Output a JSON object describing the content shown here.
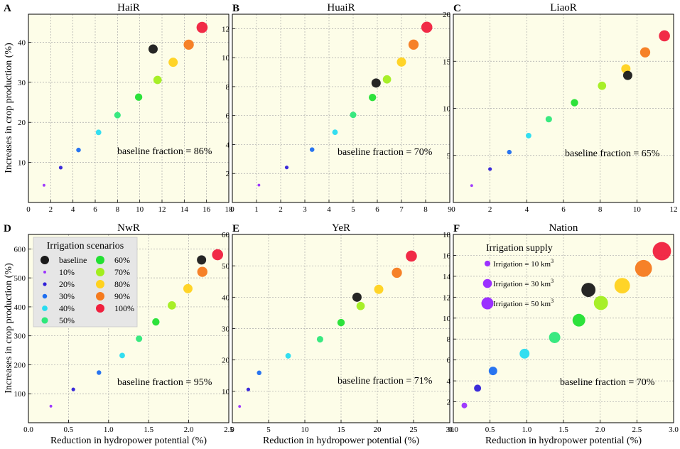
{
  "colors": {
    "plot_bg": "#fdfde8",
    "grid": "#a9a9a9",
    "scenario_colors": [
      "#1a1a1a",
      "#9b30ff",
      "#3020d8",
      "#1e6ef0",
      "#28dcf0",
      "#2ee87a",
      "#22e032",
      "#a2ee1e",
      "#ffd21e",
      "#f57a1e",
      "#f0203e"
    ]
  },
  "shared": {
    "xlabel": "Reduction in hydropower potential (%)",
    "ylabel": "Increases in crop production (%)"
  },
  "legend": {
    "title": "Irrigation scenarios",
    "entries": [
      "baseline",
      "10%",
      "20%",
      "30%",
      "40%",
      "50%",
      "60%",
      "70%",
      "80%",
      "90%",
      "100%"
    ]
  },
  "supply_legend": {
    "title": "Irrigation supply",
    "entries": [
      {
        "label": "Irrigation = 10 km",
        "sup": "3",
        "amount": 10
      },
      {
        "label": "Irrigation = 30 km",
        "sup": "3",
        "amount": 30
      },
      {
        "label": "Irrigation = 50 km",
        "sup": "3",
        "amount": 50
      }
    ]
  },
  "chart_data": [
    {
      "type": "scatter",
      "letter": "A",
      "title": "HaiR",
      "xlim": [
        0,
        18
      ],
      "ylim": [
        0,
        47
      ],
      "xticks": [
        "0",
        "2",
        "4",
        "6",
        "8",
        "10",
        "12",
        "14",
        "16",
        "18"
      ],
      "yticks": [
        "10",
        "20",
        "30",
        "40"
      ],
      "annotation": "baseline fraction = 86%",
      "points": [
        {
          "scenario": "baseline",
          "x": 11.2,
          "y": 38.3
        },
        {
          "scenario": "10%",
          "x": 1.4,
          "y": 4.3
        },
        {
          "scenario": "20%",
          "x": 2.9,
          "y": 8.7
        },
        {
          "scenario": "30%",
          "x": 4.5,
          "y": 13.1
        },
        {
          "scenario": "40%",
          "x": 6.3,
          "y": 17.5
        },
        {
          "scenario": "50%",
          "x": 8.0,
          "y": 21.8
        },
        {
          "scenario": "60%",
          "x": 9.9,
          "y": 26.3
        },
        {
          "scenario": "70%",
          "x": 11.6,
          "y": 30.6
        },
        {
          "scenario": "80%",
          "x": 13.0,
          "y": 35.0
        },
        {
          "scenario": "90%",
          "x": 14.4,
          "y": 39.4
        },
        {
          "scenario": "100%",
          "x": 15.6,
          "y": 43.7
        }
      ]
    },
    {
      "type": "scatter",
      "letter": "B",
      "title": "HuaiR",
      "xlim": [
        0,
        9
      ],
      "ylim": [
        0,
        13
      ],
      "xticks": [
        "0",
        "1",
        "2",
        "3",
        "4",
        "5",
        "6",
        "7",
        "8",
        "9"
      ],
      "yticks": [
        "2",
        "4",
        "6",
        "8",
        "10",
        "12"
      ],
      "annotation": "baseline fraction = 70%",
      "points": [
        {
          "scenario": "baseline",
          "x": 5.95,
          "y": 8.25
        },
        {
          "scenario": "10%",
          "x": 1.1,
          "y": 1.2
        },
        {
          "scenario": "20%",
          "x": 2.25,
          "y": 2.42
        },
        {
          "scenario": "30%",
          "x": 3.3,
          "y": 3.65
        },
        {
          "scenario": "40%",
          "x": 4.25,
          "y": 4.85
        },
        {
          "scenario": "50%",
          "x": 5.0,
          "y": 6.05
        },
        {
          "scenario": "60%",
          "x": 5.8,
          "y": 7.25
        },
        {
          "scenario": "70%",
          "x": 6.4,
          "y": 8.5
        },
        {
          "scenario": "80%",
          "x": 7.0,
          "y": 9.7
        },
        {
          "scenario": "90%",
          "x": 7.5,
          "y": 10.9
        },
        {
          "scenario": "100%",
          "x": 8.05,
          "y": 12.1
        }
      ]
    },
    {
      "type": "scatter",
      "letter": "C",
      "title": "LiaoR",
      "xlim": [
        0,
        12
      ],
      "ylim": [
        0,
        20
      ],
      "xticks": [
        "0",
        "2",
        "4",
        "6",
        "8",
        "10",
        "12"
      ],
      "yticks": [
        "5",
        "10",
        "15",
        "20"
      ],
      "annotation": "baseline fraction = 65%",
      "points": [
        {
          "scenario": "baseline",
          "x": 9.5,
          "y": 13.5
        },
        {
          "scenario": "10%",
          "x": 1.0,
          "y": 1.8
        },
        {
          "scenario": "20%",
          "x": 2.0,
          "y": 3.55
        },
        {
          "scenario": "30%",
          "x": 3.05,
          "y": 5.35
        },
        {
          "scenario": "40%",
          "x": 4.1,
          "y": 7.1
        },
        {
          "scenario": "50%",
          "x": 5.2,
          "y": 8.85
        },
        {
          "scenario": "60%",
          "x": 6.6,
          "y": 10.6
        },
        {
          "scenario": "70%",
          "x": 8.1,
          "y": 12.4
        },
        {
          "scenario": "80%",
          "x": 9.4,
          "y": 14.2
        },
        {
          "scenario": "90%",
          "x": 10.45,
          "y": 15.95
        },
        {
          "scenario": "100%",
          "x": 11.5,
          "y": 17.7
        }
      ]
    },
    {
      "type": "scatter",
      "letter": "D",
      "title": "NwR",
      "xlim": [
        0,
        2.5
      ],
      "ylim": [
        0,
        650
      ],
      "xticks": [
        "0.0",
        "0.5",
        "1.0",
        "1.5",
        "2.0",
        "2.5"
      ],
      "yticks": [
        "100",
        "200",
        "300",
        "400",
        "500",
        "600"
      ],
      "annotation": "baseline fraction = 95%",
      "points": [
        {
          "scenario": "baseline",
          "x": 2.16,
          "y": 562
        },
        {
          "scenario": "10%",
          "x": 0.28,
          "y": 57
        },
        {
          "scenario": "20%",
          "x": 0.56,
          "y": 115
        },
        {
          "scenario": "30%",
          "x": 0.88,
          "y": 173
        },
        {
          "scenario": "40%",
          "x": 1.17,
          "y": 232
        },
        {
          "scenario": "50%",
          "x": 1.38,
          "y": 290
        },
        {
          "scenario": "60%",
          "x": 1.59,
          "y": 348
        },
        {
          "scenario": "70%",
          "x": 1.79,
          "y": 405
        },
        {
          "scenario": "80%",
          "x": 1.99,
          "y": 463
        },
        {
          "scenario": "90%",
          "x": 2.17,
          "y": 521
        },
        {
          "scenario": "100%",
          "x": 2.36,
          "y": 580
        }
      ]
    },
    {
      "type": "scatter",
      "letter": "E",
      "title": "YeR",
      "xlim": [
        0,
        30
      ],
      "ylim": [
        0,
        60
      ],
      "xticks": [
        "0",
        "5",
        "10",
        "15",
        "20",
        "25",
        "30"
      ],
      "yticks": [
        "10",
        "20",
        "30",
        "40",
        "50",
        "60"
      ],
      "annotation": "baseline fraction = 71%",
      "points": [
        {
          "scenario": "baseline",
          "x": 17.2,
          "y": 40.0
        },
        {
          "scenario": "10%",
          "x": 1.0,
          "y": 5.2
        },
        {
          "scenario": "20%",
          "x": 2.2,
          "y": 10.6
        },
        {
          "scenario": "30%",
          "x": 3.7,
          "y": 15.9
        },
        {
          "scenario": "40%",
          "x": 7.7,
          "y": 21.3
        },
        {
          "scenario": "50%",
          "x": 12.1,
          "y": 26.6
        },
        {
          "scenario": "60%",
          "x": 15.0,
          "y": 31.9
        },
        {
          "scenario": "70%",
          "x": 17.7,
          "y": 37.2
        },
        {
          "scenario": "80%",
          "x": 20.2,
          "y": 42.5
        },
        {
          "scenario": "90%",
          "x": 22.7,
          "y": 47.8
        },
        {
          "scenario": "100%",
          "x": 24.7,
          "y": 53.1
        }
      ]
    },
    {
      "type": "scatter",
      "letter": "F",
      "title": "Nation",
      "xlim": [
        0,
        3.0
      ],
      "ylim": [
        0,
        18
      ],
      "xticks": [
        "0.0",
        "0.5",
        "1.0",
        "1.5",
        "2.0",
        "2.5",
        "3.0"
      ],
      "yticks": [
        "2",
        "4",
        "6",
        "8",
        "10",
        "12",
        "14",
        "16",
        "18"
      ],
      "annotation": "baseline fraction = 70%",
      "size_encoding": "irrigation supply",
      "points": [
        {
          "scenario": "baseline",
          "x": 1.84,
          "y": 12.7,
          "irrigation": 42
        },
        {
          "scenario": "10%",
          "x": 0.15,
          "y": 1.65,
          "irrigation": 6
        },
        {
          "scenario": "20%",
          "x": 0.33,
          "y": 3.3,
          "irrigation": 12
        },
        {
          "scenario": "30%",
          "x": 0.54,
          "y": 4.95,
          "irrigation": 18
        },
        {
          "scenario": "40%",
          "x": 0.97,
          "y": 6.6,
          "irrigation": 24
        },
        {
          "scenario": "50%",
          "x": 1.38,
          "y": 8.15,
          "irrigation": 30
        },
        {
          "scenario": "60%",
          "x": 1.71,
          "y": 9.8,
          "irrigation": 36
        },
        {
          "scenario": "70%",
          "x": 2.01,
          "y": 11.45,
          "irrigation": 42
        },
        {
          "scenario": "80%",
          "x": 2.3,
          "y": 13.1,
          "irrigation": 48
        },
        {
          "scenario": "90%",
          "x": 2.59,
          "y": 14.75,
          "irrigation": 54
        },
        {
          "scenario": "100%",
          "x": 2.84,
          "y": 16.4,
          "irrigation": 60
        }
      ]
    }
  ]
}
